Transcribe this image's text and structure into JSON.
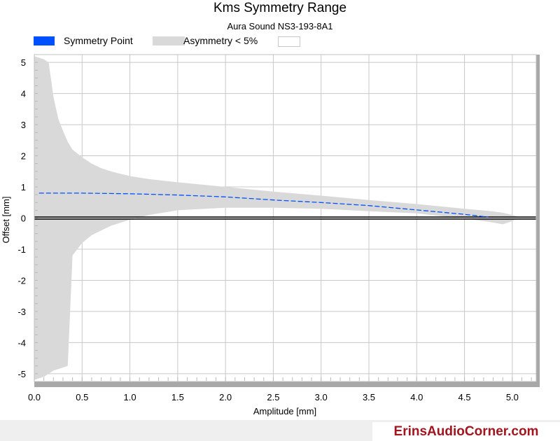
{
  "chart_data": {
    "type": "area",
    "title": "Kms Symmetry Range",
    "subtitle": "Aura Sound NS3-193-8A1",
    "xlabel": "Amplitude [mm]",
    "ylabel": "Offset [mm]",
    "xlim": [
      0,
      5.25
    ],
    "ylim": [
      -5.25,
      5.25
    ],
    "x_ticks": [
      "0.0",
      "0.5",
      "1.0",
      "1.5",
      "2.0",
      "2.5",
      "3.0",
      "3.5",
      "4.0",
      "4.5",
      "5.0"
    ],
    "y_ticks": [
      "5",
      "4",
      "3",
      "2",
      "1",
      "0",
      "-1",
      "-2",
      "-3",
      "-4",
      "-5"
    ],
    "grid": true,
    "legend_placement": "top-left",
    "series": [
      {
        "name": "Symmetry Point",
        "style": "dashed-line",
        "color": "#0050ff",
        "x": [
          0.05,
          0.5,
          1.0,
          1.5,
          2.0,
          2.5,
          3.0,
          3.5,
          4.0,
          4.5,
          4.75
        ],
        "y": [
          0.8,
          0.8,
          0.78,
          0.74,
          0.68,
          0.58,
          0.5,
          0.4,
          0.26,
          0.12,
          0.03
        ]
      },
      {
        "name": "Asymmetry < 5%",
        "style": "band",
        "color": "#d9d9d9",
        "x": [
          0.0,
          0.1,
          0.15,
          0.2,
          0.25,
          0.3,
          0.35,
          0.4,
          0.5,
          0.6,
          0.7,
          0.8,
          0.9,
          1.0,
          1.2,
          1.5,
          2.0,
          2.5,
          3.0,
          3.5,
          4.0,
          4.5,
          4.75,
          4.9,
          5.0,
          5.05
        ],
        "upper": [
          5.2,
          5.1,
          5.0,
          3.9,
          3.2,
          2.8,
          2.45,
          2.2,
          1.95,
          1.75,
          1.6,
          1.5,
          1.42,
          1.35,
          1.25,
          1.15,
          1.0,
          0.85,
          0.72,
          0.58,
          0.45,
          0.3,
          0.23,
          0.17,
          0.1,
          0.05
        ],
        "lower": [
          -5.2,
          -5.1,
          -5.0,
          -4.9,
          -4.85,
          -4.8,
          -4.75,
          -1.2,
          -0.8,
          -0.55,
          -0.4,
          -0.25,
          -0.15,
          -0.05,
          0.1,
          0.25,
          0.33,
          0.33,
          0.3,
          0.22,
          0.15,
          -0.02,
          -0.12,
          -0.2,
          -0.1,
          0.0
        ]
      },
      {
        "name": "",
        "style": "legend-only",
        "color": "#ffffff"
      }
    ]
  },
  "footer": {
    "watermark": "ErinsAudioCorner.com"
  }
}
